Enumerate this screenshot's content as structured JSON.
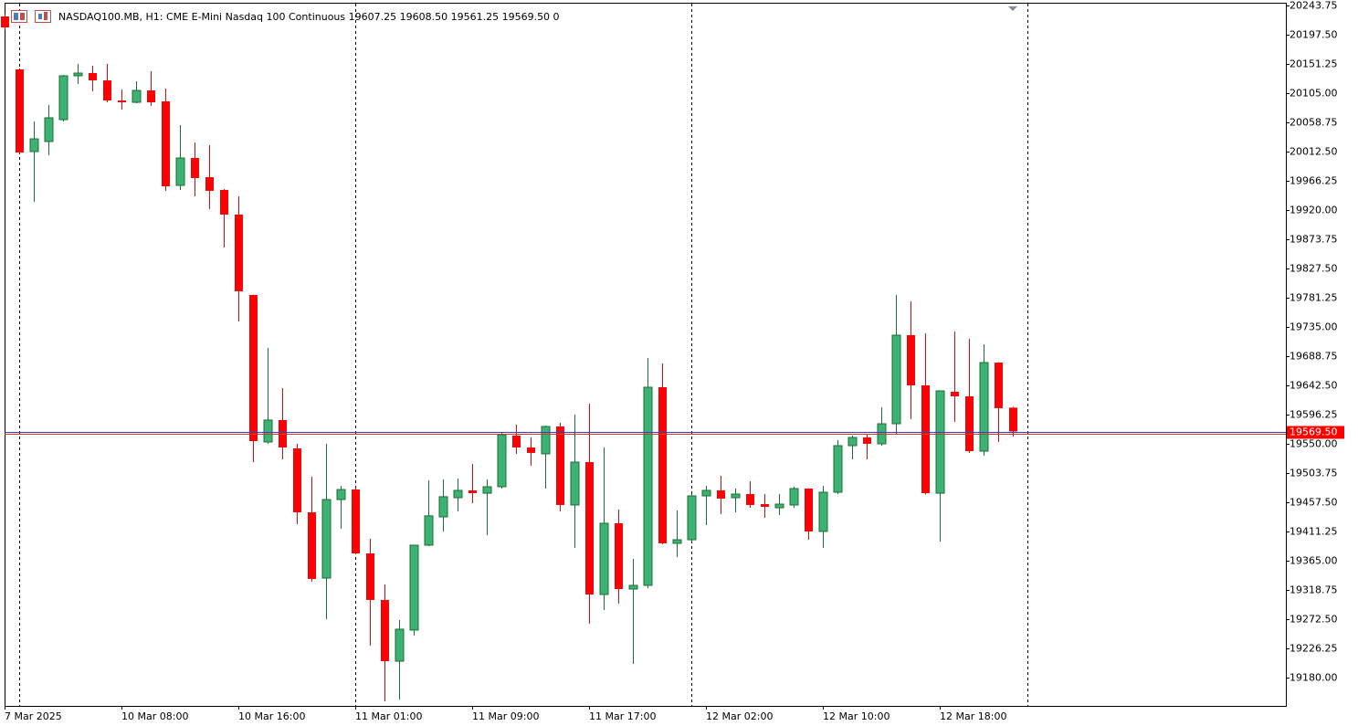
{
  "chart_data": {
    "type": "candlestick",
    "header": "NASDAQ100.MB, H1:  CME E-Mini Nasdaq 100 Continuous  19607.25 19608.50 19561.25 19569.50  0",
    "categories": [
      "7 Mar 2025",
      null,
      null,
      null,
      null,
      null,
      null,
      null,
      "10 Mar 08:00",
      null,
      null,
      null,
      null,
      null,
      null,
      null,
      "10 Mar 16:00",
      null,
      null,
      null,
      null,
      null,
      null,
      null,
      "11 Mar 01:00",
      null,
      null,
      null,
      null,
      null,
      null,
      null,
      "11 Mar 09:00",
      null,
      null,
      null,
      null,
      null,
      null,
      null,
      "11 Mar 17:00",
      null,
      null,
      null,
      null,
      null,
      null,
      null,
      "12 Mar 02:00",
      null,
      null,
      null,
      null,
      null,
      null,
      null,
      "12 Mar 10:00",
      null,
      null,
      null,
      null,
      null,
      null,
      null,
      "12 Mar 18:00",
      null,
      null,
      null,
      null,
      null
    ],
    "open": [
      20226.4,
      20142.6,
      20012.5,
      20028.4,
      20063.1,
      20132.5,
      20136.8,
      20125.2,
      20093.4,
      20090.5,
      20109.3,
      20092.0,
      19959.0,
      20002.4,
      19972.0,
      19951.8,
      19912.8,
      19785.6,
      19552.9,
      19587.6,
      19542.8,
      19441.6,
      19337.5,
      19461.8,
      19477.7,
      19376.6,
      19302.9,
      19206.0,
      19255.2,
      19389.6,
      19434.4,
      19464.7,
      19476.3,
      19471.9,
      19482.1,
      19563.0,
      19544.2,
      19534.1,
      19577.5,
      19453.2,
      19521.1,
      19311.5,
      19424.3,
      19320.2,
      19326.0,
      19639.6,
      19392.5,
      19398.2,
      19467.6,
      19476.3,
      19464.7,
      19470.5,
      19454.6,
      19448.8,
      19453.2,
      19479.2,
      19411.3,
      19473.4,
      19547.1,
      19560.1,
      19550.0,
      19581.8,
      19722.0,
      19642.5,
      19471.9,
      19632.4,
      19625.2,
      19538.4,
      19678.6,
      19607.25
    ],
    "high": [
      20230,
      20144,
      20060.2,
      20086.2,
      20134,
      20151.3,
      20148.4,
      20151.3,
      20110.8,
      20123.8,
      20139.7,
      20112.2,
      20054.4,
      20027.0,
      20022.6,
      19953.3,
      19941.7,
      19786,
      19701.7,
      19638.2,
      19550.0,
      19498.0,
      19550.0,
      19483.5,
      19480.6,
      19399.7,
      19327.4,
      19271.1,
      19390,
      19492.2,
      19493.6,
      19495.1,
      19518.2,
      19493.6,
      19567.3,
      19580.4,
      19560.1,
      19578.9,
      19583.3,
      19596.3,
      19613.6,
      19544.2,
      19446.0,
      19367.9,
      19685.9,
      19677.2,
      19444.5,
      19470.5,
      19483.5,
      19499.4,
      19479.2,
      19490.7,
      19470.5,
      19470.5,
      19482.1,
      19479.2,
      19483.5,
      19555.8,
      19563.0,
      19564.4,
      19607.8,
      19785.6,
      19775.5,
      19724.9,
      19634,
      19727.8,
      19716.2,
      19707.5,
      19679,
      19608.5
    ],
    "low": [
      20205,
      20009,
      19933.0,
      20006.7,
      20060.2,
      20119.5,
      20108.1,
      20090.5,
      20079.0,
      20089.1,
      20084.8,
      19950.4,
      19951.8,
      19941.7,
      19921.4,
      19860.7,
      19743.7,
      19521.1,
      19550.0,
      19525.4,
      19422.8,
      19331.7,
      19272.5,
      19415.6,
      19375.1,
      19230.6,
      19142.4,
      19145.3,
      19246.5,
      19388.2,
      19411.3,
      19443.1,
      19456.1,
      19405.5,
      19479.2,
      19534.1,
      19515.3,
      19479.2,
      19443.1,
      19385.2,
      19265.3,
      19287.0,
      19297.1,
      19201.7,
      19321.6,
      19391.0,
      19370.8,
      19395.3,
      19421.4,
      19438.7,
      19441.6,
      19448.8,
      19433.0,
      19437.2,
      19448.8,
      19398.2,
      19385.2,
      19470.5,
      19525.4,
      19525.4,
      19547.1,
      19564.4,
      19589.0,
      19470,
      19395.3,
      19584.7,
      19535.6,
      19531.2,
      19552.9,
      19561.25
    ],
    "close": [
      20209.0,
      20011.0,
      20032.7,
      20066.0,
      20132.5,
      20136.8,
      20125.2,
      20093.4,
      20090.5,
      20109.3,
      20090.5,
      19957.6,
      20002.4,
      19970.6,
      19950.4,
      19912.8,
      19791.4,
      19554.3,
      19587.6,
      19544.2,
      19441.6,
      19336.1,
      19461.8,
      19477.7,
      19376.6,
      19302.9,
      19206.0,
      19256.6,
      19389.6,
      19436.0,
      19466.3,
      19476.3,
      19471.9,
      19482.1,
      19564.4,
      19544.2,
      19535.6,
      19577.5,
      19453.2,
      19521.1,
      19311.5,
      19424.3,
      19320.2,
      19326.0,
      19639.6,
      19392.5,
      19398.2,
      19467.6,
      19476.3,
      19463.3,
      19470.5,
      19453.2,
      19450.3,
      19454.6,
      19479.2,
      19411.3,
      19473.4,
      19547.1,
      19560.1,
      19550.0,
      19581.8,
      19722.0,
      19642.5,
      19471.9,
      19633.8,
      19625.2,
      19538.4,
      19678.6,
      19606.4,
      19569.5
    ],
    "up_color": "#3cb371",
    "down_color": "#ff0000",
    "last_price": {
      "value": 19569.5,
      "label": "19569.50"
    },
    "ylim": [
      19135.2,
      20248.1
    ],
    "yticks": [
      20243.75,
      {
        "value": 20197.5,
        "label": "20197.50"
      },
      20151.25,
      {
        "value": 20105,
        "label": "20105.00"
      },
      20058.75,
      {
        "value": 20012.5,
        "label": "20012.50"
      },
      19966.25,
      {
        "value": 19920,
        "label": "19920.00"
      },
      19873.75,
      {
        "value": 19827.5,
        "label": "19827.50"
      },
      19781.25,
      {
        "value": 19735,
        "label": "19735.00"
      },
      19688.75,
      {
        "value": 19642.5,
        "label": "19642.50"
      },
      19596.25,
      {
        "value": 19550,
        "label": "19550.00"
      },
      19503.75,
      {
        "value": 19457.5,
        "label": "19457.50"
      },
      19411.25,
      {
        "value": 19365,
        "label": "19365.00"
      },
      19318.75,
      {
        "value": 19272.5,
        "label": "19272.50"
      },
      19226.25,
      {
        "value": 19180,
        "label": "19180.00"
      }
    ]
  }
}
